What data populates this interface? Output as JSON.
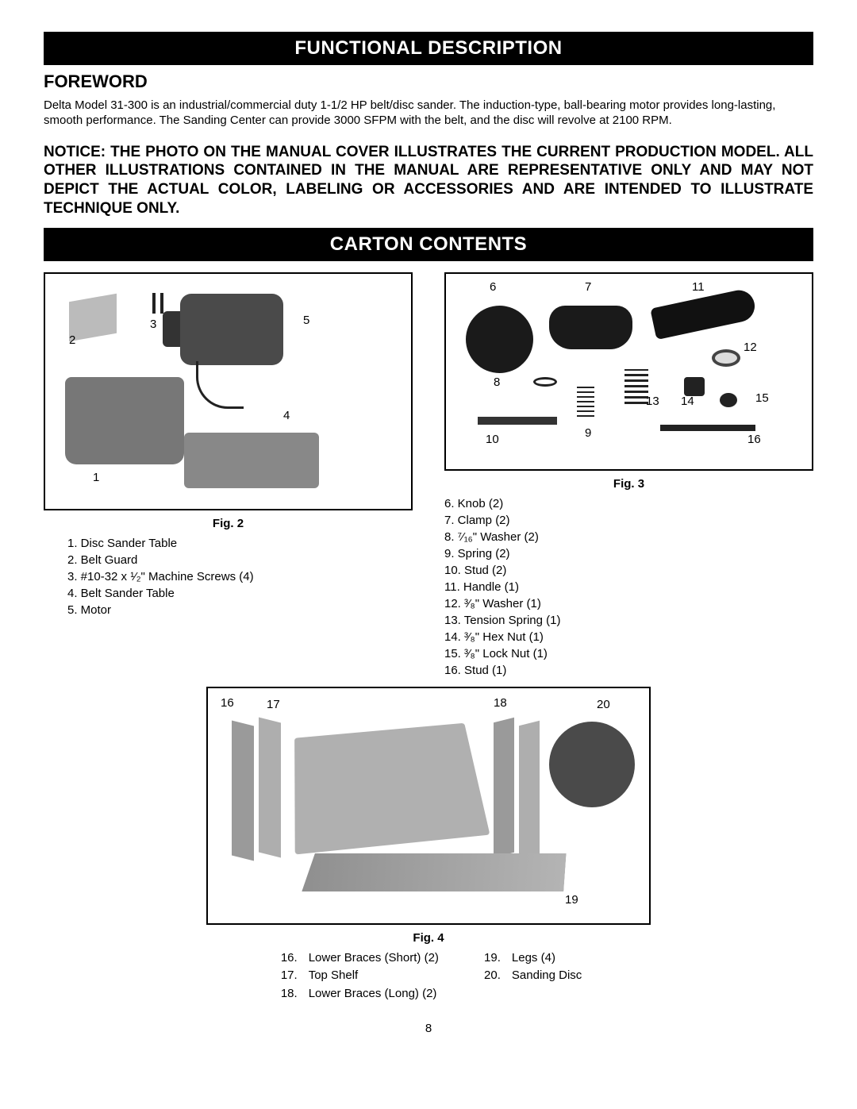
{
  "banner1": "FUNCTIONAL DESCRIPTION",
  "foreword_heading": "FOREWORD",
  "foreword_body": "Delta Model 31-300 is an industrial/commercial duty 1-1/2 HP belt/disc sander. The induction-type, ball-bearing motor provides long-lasting, smooth performance. The Sanding Center can provide 3000 SFPM with the belt, and the disc will revolve at 2100 RPM.",
  "notice": "NOTICE: THE PHOTO ON THE MANUAL COVER ILLUSTRATES THE CURRENT PRODUCTION MODEL.  ALL OTHER ILLUSTRATIONS CONTAINED IN THE MANUAL ARE REPRESENTATIVE ONLY AND MAY NOT DEPICT THE ACTUAL COLOR, LABELING OR ACCESSORIES AND ARE INTENDED TO ILLUSTRATE TECHNIQUE ONLY.",
  "banner2": "CARTON CONTENTS",
  "fig2": {
    "caption": "Fig. 2",
    "labels": {
      "l1": "1",
      "l2": "2",
      "l3": "3",
      "l4": "4",
      "l5": "5"
    },
    "items": [
      "1. Disc Sander Table",
      "2. Belt Guard",
      "3. #10-32 x ¹⁄₂\" Machine Screws (4)",
      "4. Belt Sander Table",
      "5. Motor"
    ]
  },
  "fig3": {
    "caption": "Fig. 3",
    "labels": {
      "l6": "6",
      "l7": "7",
      "l8": "8",
      "l9": "9",
      "l10": "10",
      "l11": "11",
      "l12": "12",
      "l13": "13",
      "l14": "14",
      "l15": "15",
      "l16": "16"
    },
    "items": [
      "6. Knob (2)",
      "7. Clamp (2)",
      "8. ⁷⁄₁₆\" Washer (2)",
      "9. Spring (2)",
      "10. Stud (2)",
      "11. Handle (1)",
      "12. ³⁄₈\" Washer (1)",
      "13. Tension Spring (1)",
      "14. ³⁄₈\" Hex Nut (1)",
      "15. ³⁄₈\" Lock Nut (1)",
      "16. Stud (1)"
    ]
  },
  "fig4": {
    "caption": "Fig. 4",
    "labels": {
      "l16": "16",
      "l17": "17",
      "l18": "18",
      "l19": "19",
      "l20": "20"
    },
    "cols": {
      "left": [
        {
          "n": "16.",
          "t": "Lower Braces (Short) (2)"
        },
        {
          "n": "17.",
          "t": "Top Shelf"
        },
        {
          "n": "18.",
          "t": "Lower Braces (Long) (2)"
        }
      ],
      "right": [
        {
          "n": "19.",
          "t": "Legs (4)"
        },
        {
          "n": "20.",
          "t": "Sanding Disc"
        }
      ]
    }
  },
  "page_number": "8"
}
